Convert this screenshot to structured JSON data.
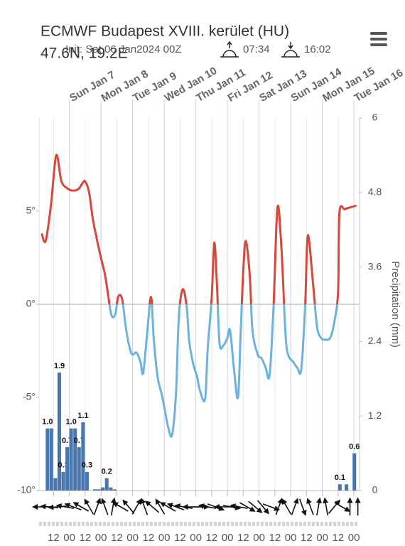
{
  "chart_data": {
    "type": "line",
    "title": "ECMWF Budapest XVIII. kerület (HU)",
    "subtitle": "47.6N, 19.2E",
    "init": "Init: Sat 06 Jan2024 00Z",
    "sunrise": "07:34",
    "sunset": "16:02",
    "y2_label": "Precipitation (mm)",
    "xlim": [
      1,
      244
    ],
    "xticks": [
      {
        "value": 12,
        "label": "12"
      },
      {
        "value": 24,
        "label": "00"
      },
      {
        "value": 36,
        "label": "12"
      },
      {
        "value": 48,
        "label": "00"
      },
      {
        "value": 60,
        "label": "12"
      },
      {
        "value": 72,
        "label": "00"
      },
      {
        "value": 84,
        "label": "12"
      },
      {
        "value": 96,
        "label": "00"
      },
      {
        "value": 108,
        "label": "12"
      },
      {
        "value": 120,
        "label": "00"
      },
      {
        "value": 132,
        "label": "12"
      },
      {
        "value": 144,
        "label": "00"
      },
      {
        "value": 156,
        "label": "12"
      },
      {
        "value": 168,
        "label": "00"
      },
      {
        "value": 180,
        "label": "12"
      },
      {
        "value": 192,
        "label": "00"
      },
      {
        "value": 204,
        "label": "12"
      },
      {
        "value": 216,
        "label": "00"
      },
      {
        "value": 228,
        "label": "12"
      },
      {
        "value": 240,
        "label": "00"
      }
    ],
    "day_ticks": [
      {
        "value": 24,
        "label": "Sun Jan 7"
      },
      {
        "value": 48,
        "label": "Mon Jan 8"
      },
      {
        "value": 72,
        "label": "Tue Jan 9"
      },
      {
        "value": 96,
        "label": "Wed Jan 10"
      },
      {
        "value": 120,
        "label": "Thu Jan 11"
      },
      {
        "value": 144,
        "label": "Fri Jan 12"
      },
      {
        "value": 168,
        "label": "Sat Jan 13"
      },
      {
        "value": 192,
        "label": "Sun Jan 14"
      },
      {
        "value": 216,
        "label": "Mon Jan 15"
      },
      {
        "value": 240,
        "label": "Tue Jan 16"
      }
    ],
    "ylim": [
      -10,
      10
    ],
    "yticks": [
      {
        "value": -10,
        "label": "-10°"
      },
      {
        "value": -5,
        "label": "-5°"
      },
      {
        "value": 0,
        "label": "0°"
      },
      {
        "value": 5,
        "label": "5°"
      }
    ],
    "y2lim": [
      0,
      6
    ],
    "y2ticks": [
      0,
      1.2,
      2.4,
      3.6,
      4.8,
      6
    ],
    "series": [
      {
        "type": "line",
        "color": "#d9473b",
        "color_below": "#6cb2de",
        "x": [
          3,
          6,
          10,
          14,
          18,
          23,
          27,
          31,
          34,
          36,
          39,
          42,
          47,
          51,
          53,
          56,
          59,
          61,
          64,
          67,
          70,
          72,
          75,
          78,
          80,
          83,
          86,
          88,
          91,
          94,
          96,
          99,
          102,
          105,
          107,
          110,
          113,
          115,
          118,
          121,
          123,
          127,
          129,
          132,
          134,
          136,
          138,
          141,
          144,
          146,
          149,
          152,
          154,
          156,
          158,
          161,
          163,
          167,
          170,
          173,
          176,
          179,
          182,
          185,
          188,
          190,
          194,
          197,
          200,
          203,
          205,
          209,
          212,
          215,
          218,
          222,
          225,
          228,
          229,
          233,
          237,
          242
        ],
        "values": [
          3.8,
          3.4,
          5.3,
          8.0,
          6.6,
          6.2,
          6.1,
          6.2,
          6.5,
          6.6,
          6.0,
          4.5,
          2.8,
          1.6,
          0.7,
          -0.6,
          -0.5,
          0.4,
          0.3,
          -1.3,
          -2.4,
          -2.7,
          -2.6,
          -3.1,
          -3.7,
          -1.6,
          0.4,
          -1.8,
          -3.9,
          -4.8,
          -5.5,
          -6.6,
          -7.0,
          -4.7,
          -0.8,
          0.8,
          -0.1,
          -2.0,
          -3.2,
          -3.9,
          -4.6,
          -5.1,
          -2.4,
          0.3,
          3.3,
          1.1,
          -2.1,
          -2.2,
          -1.8,
          -1.4,
          -3.5,
          -5.0,
          -1.6,
          1.8,
          3.4,
          1.5,
          -1.4,
          -2.7,
          -2.9,
          -3.4,
          -3.8,
          -0.1,
          5.2,
          3.0,
          -1.5,
          -2.7,
          -3.1,
          -3.4,
          -3.5,
          -0.1,
          3.7,
          1.1,
          -1.2,
          -1.8,
          -1.9,
          -1.8,
          -1.0,
          0.7,
          4.9,
          5.1,
          5.2,
          5.3
        ]
      },
      {
        "type": "bar",
        "axis": "y2",
        "color": "#4a77ad",
        "x": [
          6,
          9,
          12,
          15,
          18,
          21,
          24,
          27,
          30,
          33,
          36,
          42,
          45,
          48,
          51,
          54,
          57,
          228,
          233,
          239
        ],
        "values": [
          1.0,
          1.0,
          0.2,
          1.9,
          0.3,
          0.7,
          1.0,
          1.0,
          0.7,
          1.1,
          0.3,
          0.02,
          0.02,
          0.05,
          0.2,
          0.05,
          0.02,
          0.1,
          0.1,
          0.6
        ],
        "value_labels": [
          "1.0",
          null,
          null,
          "1.9",
          "0.3",
          "0.7",
          "1.0",
          null,
          "0.7",
          "1.1",
          "0.3",
          null,
          null,
          null,
          "0.2",
          null,
          null,
          "0.1",
          null,
          "0.6"
        ]
      }
    ],
    "wind": {
      "x": [
        3,
        9,
        15,
        21,
        27,
        33,
        39,
        45,
        51,
        57,
        63,
        69,
        75,
        81,
        87,
        93,
        99,
        105,
        111,
        117,
        123,
        129,
        135,
        141,
        147,
        153,
        159,
        165,
        171,
        177,
        183,
        189,
        195,
        201,
        207,
        213,
        219,
        225,
        231,
        237,
        243
      ],
      "values": [
        270,
        275,
        265,
        280,
        290,
        300,
        330,
        20,
        340,
        10,
        300,
        320,
        30,
        340,
        310,
        330,
        300,
        290,
        280,
        270,
        90,
        280,
        110,
        270,
        100,
        280,
        120,
        130,
        140,
        110,
        20,
        330,
        20,
        160,
        340,
        10,
        350,
        40,
        120,
        0,
        0
      ]
    }
  }
}
